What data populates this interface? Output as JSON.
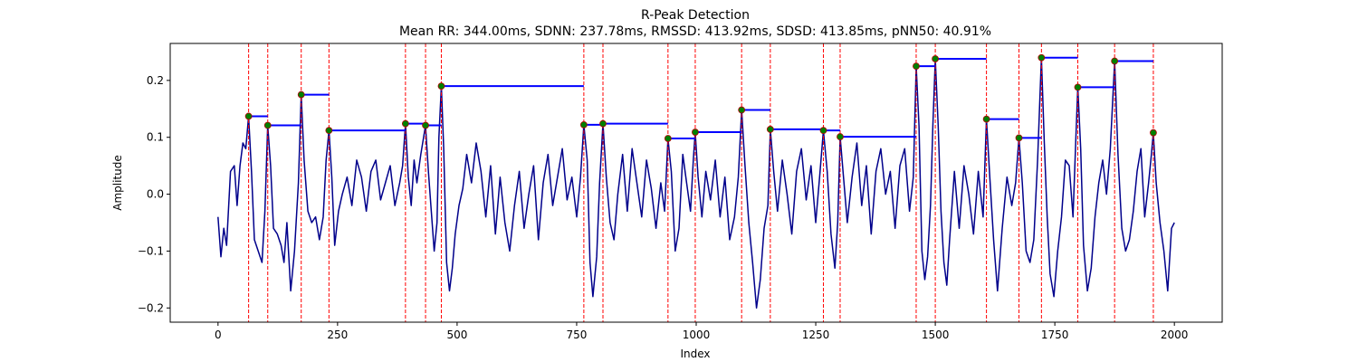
{
  "chart_data": {
    "type": "line",
    "title": "R-Peak Detection",
    "subtitle": "Mean RR: 344.00ms, SDNN: 237.78ms, RMSSD: 413.92ms, SDSD: 413.85ms, pNN50: 40.91%",
    "xlabel": "Index",
    "ylabel": "Amplitude",
    "xlim": [
      -100,
      2100
    ],
    "ylim": [
      -0.225,
      0.265
    ],
    "xticks": [
      0,
      250,
      500,
      750,
      1000,
      1250,
      1500,
      1750,
      2000
    ],
    "yticks": [
      -0.2,
      -0.1,
      0.0,
      0.1,
      0.2
    ],
    "xtick_labels": [
      "0",
      "250",
      "500",
      "750",
      "1000",
      "1250",
      "1500",
      "1750",
      "2000"
    ],
    "ytick_labels": [
      "−0.2",
      "−0.1",
      "0.0",
      "0.1",
      "0.2"
    ],
    "grid": false,
    "colors": {
      "signal": "#00008b",
      "peak_line": "#ff0000",
      "peak_marker": "#008000",
      "interval": "#0000ff"
    },
    "peaks": [
      {
        "x": 64,
        "y": 0.137
      },
      {
        "x": 104,
        "y": 0.121
      },
      {
        "x": 174,
        "y": 0.175
      },
      {
        "x": 232,
        "y": 0.112
      },
      {
        "x": 392,
        "y": 0.124
      },
      {
        "x": 434,
        "y": 0.121
      },
      {
        "x": 467,
        "y": 0.19
      },
      {
        "x": 765,
        "y": 0.122
      },
      {
        "x": 805,
        "y": 0.124
      },
      {
        "x": 941,
        "y": 0.098
      },
      {
        "x": 998,
        "y": 0.109
      },
      {
        "x": 1095,
        "y": 0.148
      },
      {
        "x": 1155,
        "y": 0.114
      },
      {
        "x": 1266,
        "y": 0.112
      },
      {
        "x": 1301,
        "y": 0.101
      },
      {
        "x": 1460,
        "y": 0.225
      },
      {
        "x": 1500,
        "y": 0.238
      },
      {
        "x": 1607,
        "y": 0.132
      },
      {
        "x": 1675,
        "y": 0.099
      },
      {
        "x": 1722,
        "y": 0.24
      },
      {
        "x": 1798,
        "y": 0.188
      },
      {
        "x": 1875,
        "y": 0.234
      },
      {
        "x": 1956,
        "y": 0.108
      }
    ],
    "signal": {
      "x": [
        0,
        6,
        12,
        18,
        26,
        34,
        40,
        46,
        52,
        58,
        64,
        70,
        76,
        84,
        92,
        98,
        104,
        110,
        116,
        124,
        132,
        138,
        144,
        152,
        160,
        168,
        174,
        180,
        188,
        196,
        204,
        212,
        220,
        226,
        232,
        238,
        244,
        252,
        260,
        270,
        280,
        290,
        300,
        310,
        320,
        330,
        340,
        350,
        360,
        370,
        380,
        386,
        392,
        398,
        404,
        410,
        416,
        424,
        430,
        434,
        440,
        446,
        452,
        458,
        462,
        467,
        472,
        478,
        484,
        490,
        496,
        504,
        512,
        520,
        530,
        540,
        550,
        560,
        570,
        580,
        590,
        600,
        610,
        620,
        630,
        640,
        650,
        660,
        670,
        680,
        690,
        700,
        710,
        720,
        730,
        740,
        750,
        758,
        765,
        772,
        778,
        784,
        792,
        798,
        805,
        812,
        820,
        828,
        836,
        846,
        856,
        866,
        876,
        886,
        896,
        906,
        916,
        926,
        934,
        941,
        948,
        956,
        964,
        972,
        980,
        988,
        994,
        998,
        1004,
        1012,
        1020,
        1030,
        1040,
        1050,
        1060,
        1070,
        1080,
        1088,
        1095,
        1102,
        1110,
        1118,
        1126,
        1134,
        1142,
        1150,
        1155,
        1162,
        1170,
        1180,
        1190,
        1200,
        1210,
        1220,
        1230,
        1240,
        1250,
        1258,
        1266,
        1274,
        1282,
        1290,
        1296,
        1301,
        1308,
        1316,
        1326,
        1336,
        1346,
        1356,
        1366,
        1376,
        1386,
        1396,
        1406,
        1416,
        1426,
        1436,
        1446,
        1454,
        1460,
        1466,
        1472,
        1478,
        1484,
        1490,
        1495,
        1500,
        1506,
        1512,
        1518,
        1524,
        1530,
        1540,
        1550,
        1560,
        1570,
        1580,
        1590,
        1600,
        1607,
        1614,
        1622,
        1630,
        1640,
        1650,
        1660,
        1668,
        1675,
        1682,
        1690,
        1698,
        1706,
        1714,
        1722,
        1728,
        1734,
        1740,
        1748,
        1756,
        1764,
        1772,
        1780,
        1788,
        1794,
        1798,
        1804,
        1810,
        1818,
        1826,
        1834,
        1842,
        1850,
        1858,
        1866,
        1875,
        1882,
        1890,
        1898,
        1906,
        1914,
        1922,
        1930,
        1938,
        1946,
        1952,
        1956,
        1962,
        1970,
        1978,
        1986,
        1994,
        2000
      ],
      "y": [
        -0.04,
        -0.11,
        -0.06,
        -0.09,
        0.04,
        0.05,
        -0.02,
        0.05,
        0.09,
        0.08,
        0.137,
        0.04,
        -0.08,
        -0.1,
        -0.12,
        -0.03,
        0.121,
        0.05,
        -0.06,
        -0.07,
        -0.09,
        -0.12,
        -0.05,
        -0.17,
        -0.1,
        0.02,
        0.175,
        0.06,
        -0.03,
        -0.05,
        -0.04,
        -0.08,
        -0.04,
        0.06,
        0.112,
        0.03,
        -0.09,
        -0.03,
        0.0,
        0.03,
        -0.02,
        0.06,
        0.03,
        -0.03,
        0.04,
        0.06,
        -0.01,
        0.02,
        0.05,
        -0.02,
        0.02,
        0.05,
        0.124,
        0.03,
        -0.02,
        0.06,
        0.02,
        0.07,
        0.1,
        0.121,
        0.04,
        -0.03,
        -0.1,
        -0.05,
        0.1,
        0.19,
        0.08,
        -0.12,
        -0.17,
        -0.13,
        -0.07,
        -0.02,
        0.01,
        0.07,
        0.02,
        0.09,
        0.04,
        -0.04,
        0.05,
        -0.07,
        0.03,
        -0.05,
        -0.1,
        -0.02,
        0.04,
        -0.06,
        0.0,
        0.05,
        -0.08,
        0.02,
        0.07,
        -0.02,
        0.03,
        0.08,
        -0.01,
        0.03,
        -0.04,
        0.03,
        0.122,
        0.06,
        -0.12,
        -0.18,
        -0.11,
        0.02,
        0.124,
        0.03,
        -0.05,
        -0.08,
        0.0,
        0.07,
        -0.03,
        0.08,
        0.02,
        -0.04,
        0.06,
        0.01,
        -0.06,
        0.02,
        -0.03,
        0.098,
        0.04,
        -0.1,
        -0.06,
        0.07,
        0.02,
        -0.03,
        0.06,
        0.109,
        0.03,
        -0.04,
        0.04,
        -0.01,
        0.06,
        -0.04,
        0.03,
        -0.08,
        -0.04,
        0.03,
        0.148,
        0.05,
        -0.05,
        -0.12,
        -0.2,
        -0.15,
        -0.06,
        -0.02,
        0.114,
        0.04,
        -0.03,
        0.06,
        0.0,
        -0.07,
        0.04,
        0.08,
        -0.01,
        0.05,
        -0.05,
        0.03,
        0.112,
        0.04,
        -0.07,
        -0.13,
        -0.05,
        0.101,
        0.03,
        -0.05,
        0.03,
        0.09,
        -0.02,
        0.05,
        -0.07,
        0.04,
        0.08,
        0.0,
        0.04,
        -0.06,
        0.05,
        0.08,
        -0.03,
        0.03,
        0.225,
        0.12,
        -0.1,
        -0.15,
        -0.11,
        -0.02,
        0.12,
        0.238,
        0.12,
        -0.03,
        -0.12,
        -0.16,
        -0.08,
        0.04,
        -0.06,
        0.05,
        0.0,
        -0.07,
        0.04,
        -0.04,
        0.132,
        0.03,
        -0.08,
        -0.17,
        -0.06,
        0.03,
        -0.02,
        0.02,
        0.099,
        0.02,
        -0.1,
        -0.12,
        -0.08,
        0.06,
        0.24,
        0.09,
        -0.04,
        -0.14,
        -0.18,
        -0.1,
        -0.04,
        0.06,
        0.05,
        -0.04,
        0.1,
        0.188,
        0.08,
        -0.09,
        -0.17,
        -0.13,
        -0.04,
        0.02,
        0.06,
        0.0,
        0.08,
        0.234,
        0.07,
        -0.06,
        -0.1,
        -0.08,
        -0.03,
        0.04,
        0.08,
        -0.04,
        0.02,
        0.07,
        0.108,
        0.02,
        -0.05,
        -0.1,
        -0.17,
        -0.06,
        -0.05
      ]
    }
  }
}
